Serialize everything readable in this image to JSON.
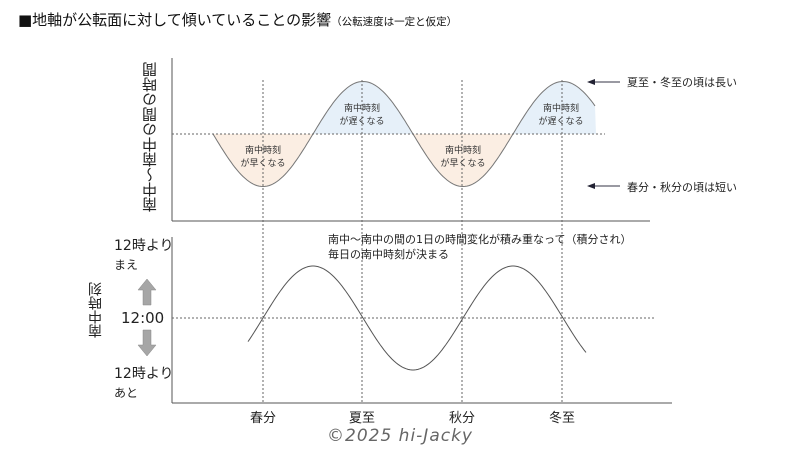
{
  "title": {
    "main": "■地軸が公転面に対して傾いていることの影響",
    "sub": "（公転速度は一定と仮定）"
  },
  "top_chart": {
    "ylabel": "南中～南中の間の時間",
    "annotation_long": "夏至・冬至の頃は長い",
    "annotation_short": "春分・秋分の頃は短い",
    "earlier_label": [
      "南中時刻",
      "が早くなる"
    ],
    "later_label": [
      "南中時刻",
      "が遅くなる"
    ],
    "fill_earlier_color": "#fbeee3",
    "fill_later_color": "#e6f0f9"
  },
  "bottom_chart": {
    "ylabel": "南中時刻",
    "note": [
      "南中～南中の間の1日の時間変化が積み重なって（積分され）",
      "毎日の南中時刻が決まる"
    ],
    "y_top": [
      "12時より",
      "まえ"
    ],
    "y_mid": "12:00",
    "y_bottom": [
      "12時より",
      "あと"
    ],
    "arrow_color": "#a6a6a6"
  },
  "x_labels": [
    "春分",
    "夏至",
    "秋分",
    "冬至"
  ],
  "copyright": "©2025 hi-Jacky"
}
